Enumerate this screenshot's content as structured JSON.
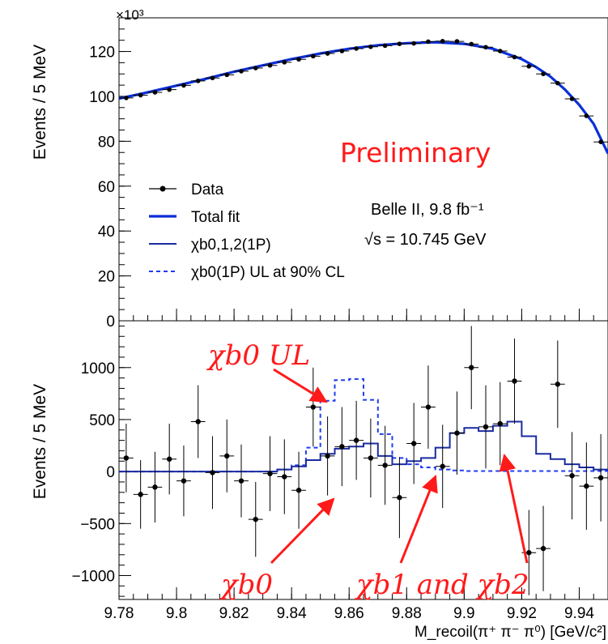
{
  "chart_data": [
    {
      "type": "line",
      "panel": "top",
      "ylabel": "Events / 5 MeV",
      "scale_label": "×10³",
      "xlim": [
        9.78,
        9.95
      ],
      "ylim": [
        0,
        135
      ],
      "yticks": [
        0,
        20,
        40,
        60,
        80,
        100,
        120
      ],
      "grid": false,
      "legend_position": "middle-left",
      "legend": [
        {
          "label": "Data",
          "style": "marker-with-errorbar"
        },
        {
          "label": "Total fit",
          "style": "thick-solid"
        },
        {
          "label": "χb0,1,2(1P)",
          "style": "solid"
        },
        {
          "label": "χb0(1P) UL at 90% CL",
          "style": "dashed"
        }
      ],
      "annotations": {
        "preliminary": "Preliminary",
        "experiment": "Belle II, 9.8 fb⁻¹",
        "energy": "√s = 10.745 GeV"
      },
      "series": [
        {
          "name": "Data",
          "x": [
            9.7825,
            9.7875,
            9.7925,
            9.7975,
            9.8025,
            9.8075,
            9.8125,
            9.8175,
            9.8225,
            9.8275,
            9.8325,
            9.8375,
            9.8425,
            9.8475,
            9.8525,
            9.8575,
            9.8625,
            9.8675,
            9.8725,
            9.8775,
            9.8825,
            9.8875,
            9.8925,
            9.8975,
            9.9025,
            9.9075,
            9.9125,
            9.9175,
            9.9225,
            9.9275,
            9.9325,
            9.9375,
            9.9425,
            9.9475
          ],
          "y": [
            99.3,
            100.5,
            101.8,
            103.0,
            104.9,
            106.9,
            108.2,
            109.6,
            111.2,
            112.6,
            113.8,
            115.2,
            116.5,
            117.9,
            119.1,
            120.2,
            121.3,
            122.1,
            122.6,
            123.4,
            123.6,
            124.4,
            124.6,
            124.5,
            123.3,
            121.9,
            120.2,
            117.5,
            113.4,
            110.0,
            105.9,
            98.9,
            91.3,
            79.7
          ]
        },
        {
          "name": "Total fit",
          "x": [
            9.78,
            9.79,
            9.8,
            9.81,
            9.82,
            9.83,
            9.84,
            9.85,
            9.86,
            9.87,
            9.88,
            9.89,
            9.9,
            9.91,
            9.92,
            9.925,
            9.93,
            9.935,
            9.94,
            9.945,
            9.95
          ],
          "y": [
            99,
            101.8,
            104.8,
            107.8,
            111,
            113.8,
            116.6,
            119.1,
            121.2,
            122.8,
            123.7,
            124.1,
            123.4,
            121.2,
            116.6,
            113,
            108.8,
            103.1,
            96.2,
            87.8,
            74.5
          ]
        }
      ]
    },
    {
      "type": "line",
      "panel": "bottom",
      "ylabel": "Events / 5 MeV",
      "xlabel": "M_recoil(π⁺ π⁻ π⁰)  [GeV/c²]",
      "xlim": [
        9.78,
        9.95
      ],
      "ylim": [
        -1230,
        1450
      ],
      "yticks": [
        -1000,
        -500,
        0,
        500,
        1000
      ],
      "xticks": [
        9.78,
        9.8,
        9.82,
        9.84,
        9.86,
        9.88,
        9.9,
        9.92,
        9.94
      ],
      "xtick_labels": [
        "9.78",
        "9.8",
        "9.82",
        "9.84",
        "9.86",
        "9.88",
        "9.9",
        "9.92",
        "9.94"
      ],
      "grid": false,
      "annotations": {
        "chi_b0_ul": "χb0 UL",
        "chi_b0": "χb0",
        "chi_b1_and_b2": "χb1 and χb2"
      },
      "series": [
        {
          "name": "Data",
          "x": [
            9.7825,
            9.7875,
            9.7925,
            9.7975,
            9.8025,
            9.8075,
            9.8125,
            9.8175,
            9.8225,
            9.8275,
            9.8325,
            9.8375,
            9.8425,
            9.8475,
            9.8525,
            9.8575,
            9.8625,
            9.8675,
            9.8725,
            9.8775,
            9.8825,
            9.8875,
            9.8925,
            9.8975,
            9.9025,
            9.9075,
            9.9125,
            9.9175,
            9.9225,
            9.9275,
            9.9325,
            9.9375,
            9.9425,
            9.9475
          ],
          "y": [
            130,
            -220,
            -150,
            120,
            -90,
            480,
            -10,
            150,
            -90,
            -460,
            -20,
            -50,
            -180,
            620,
            150,
            240,
            300,
            130,
            60,
            -250,
            270,
            620,
            50,
            370,
            1000,
            430,
            460,
            870,
            -780,
            -740,
            840,
            -40,
            -140,
            -60
          ],
          "yerr": [
            330,
            330,
            340,
            340,
            340,
            350,
            350,
            350,
            350,
            360,
            360,
            360,
            370,
            380,
            380,
            380,
            380,
            380,
            380,
            390,
            390,
            400,
            400,
            400,
            400,
            400,
            400,
            410,
            410,
            410,
            420,
            420,
            420,
            420
          ]
        },
        {
          "name": "χb0,1,2(1P)",
          "x": [
            9.78,
            9.83,
            9.835,
            9.84,
            9.845,
            9.85,
            9.855,
            9.86,
            9.865,
            9.87,
            9.875,
            9.88,
            9.885,
            9.89,
            9.895,
            9.9,
            9.905,
            9.91,
            9.915,
            9.92,
            9.925,
            9.93,
            9.935,
            9.94,
            9.945,
            9.95
          ],
          "y": [
            0,
            0,
            20,
            50,
            110,
            170,
            220,
            240,
            270,
            150,
            70,
            100,
            130,
            230,
            370,
            420,
            390,
            440,
            480,
            340,
            170,
            120,
            70,
            40,
            20,
            10
          ]
        },
        {
          "name": "χb0(1P) UL at 90% CL",
          "x": [
            9.78,
            9.835,
            9.84,
            9.845,
            9.85,
            9.855,
            9.86,
            9.865,
            9.87,
            9.875,
            9.88,
            9.885,
            9.89,
            9.895,
            9.9,
            9.95
          ],
          "y": [
            0,
            20,
            60,
            230,
            680,
            880,
            890,
            690,
            360,
            130,
            70,
            40,
            20,
            10,
            5,
            0
          ]
        }
      ]
    }
  ]
}
